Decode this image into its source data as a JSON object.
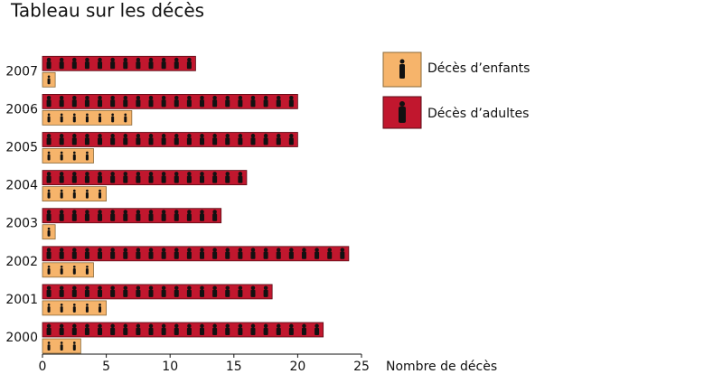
{
  "chart_data": {
    "type": "bar",
    "orientation": "horizontal",
    "title": "Tableau sur les décès",
    "x_label": "Nombre de décès",
    "categories": [
      "2000",
      "2001",
      "2002",
      "2003",
      "2004",
      "2005",
      "2006",
      "2007"
    ],
    "series": [
      {
        "name": "Décès d’enfants",
        "color": "#f6b46b",
        "values": [
          3,
          5,
          4,
          1,
          5,
          4,
          7,
          1
        ]
      },
      {
        "name": "Décès d’adultes",
        "color": "#c1172e",
        "values": [
          22,
          18,
          24,
          14,
          16,
          20,
          20,
          12
        ]
      }
    ],
    "xlim": [
      0,
      25
    ],
    "xticks": [
      0,
      5,
      10,
      15,
      20,
      25
    ],
    "grid": false
  }
}
